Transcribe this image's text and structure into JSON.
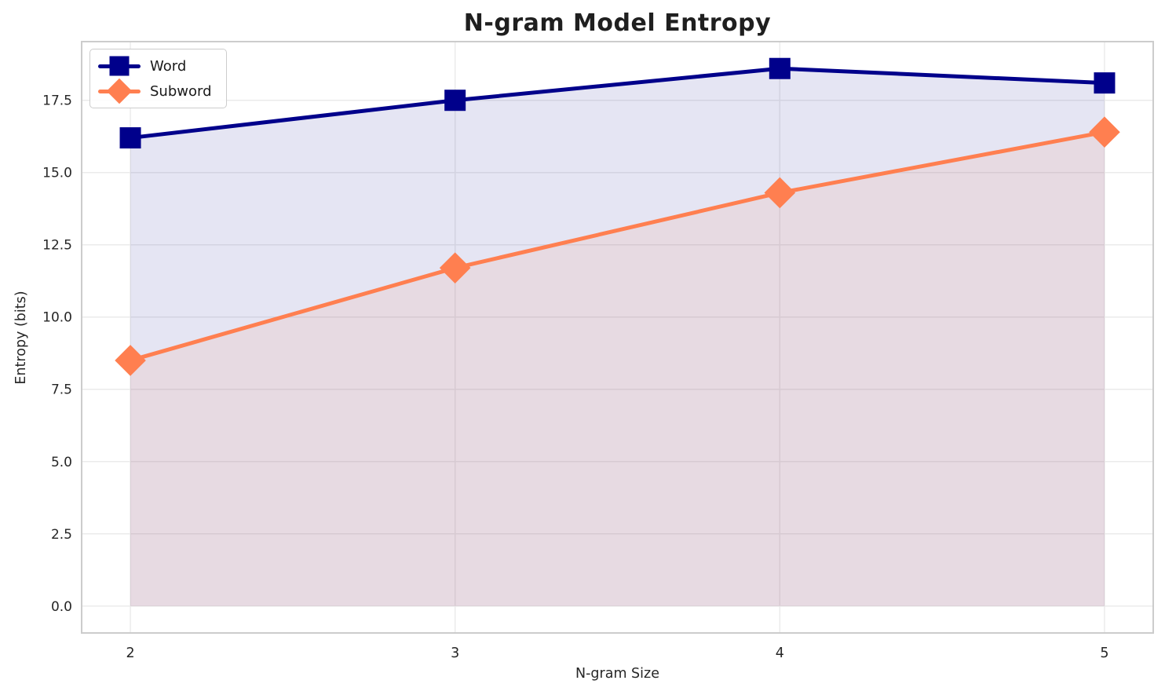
{
  "figure": {
    "title": "N-gram Model Entropy",
    "xlabel": "N-gram Size",
    "ylabel": "Entropy (bits)"
  },
  "chart_data": {
    "type": "line",
    "title": "N-gram Model Entropy",
    "xlabel": "N-gram Size",
    "ylabel": "Entropy (bits)",
    "x": [
      2,
      3,
      4,
      5
    ],
    "series": [
      {
        "name": "Word",
        "color": "#00008b",
        "marker": "square",
        "marker_size": 27,
        "line_width": 5,
        "fill_opacity": 0.1,
        "values": [
          16.2,
          17.5,
          18.6,
          18.1
        ]
      },
      {
        "name": "Subword",
        "color": "#ff7f50",
        "marker": "diamond",
        "marker_size": 28,
        "line_width": 5,
        "fill_opacity": 0.1,
        "values": [
          8.5,
          11.7,
          14.3,
          16.4
        ]
      }
    ],
    "fill_to_zero": true,
    "area_baseline": 0,
    "xlim": [
      1.85,
      5.15
    ],
    "ylim": [
      -0.93,
      19.53
    ],
    "xticks": [
      2,
      3,
      4,
      5
    ],
    "xtick_labels": [
      "2",
      "3",
      "4",
      "5"
    ],
    "yticks": [
      0.0,
      2.5,
      5.0,
      7.5,
      10.0,
      12.5,
      15.0,
      17.5
    ],
    "ytick_labels": [
      "0.0",
      "2.5",
      "5.0",
      "7.5",
      "10.0",
      "12.5",
      "15.0",
      "17.5"
    ],
    "grid": true,
    "grid_color": "#ebebeb",
    "spine_color": "#cccccc",
    "tick_color": "#262626",
    "legend_position": "upper-left"
  }
}
